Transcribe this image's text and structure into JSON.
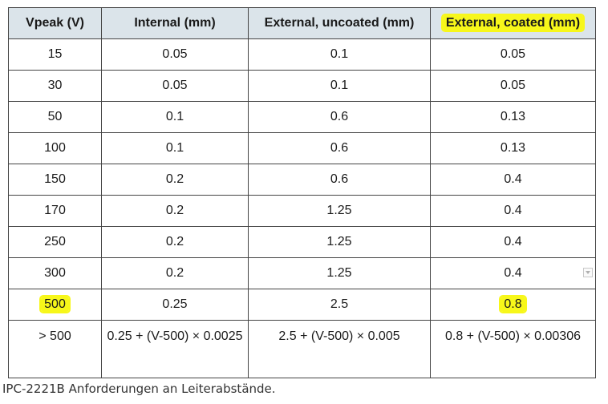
{
  "table": {
    "headers": {
      "col1": "Vpeak (V)",
      "col2": "Internal (mm)",
      "col3": "External, uncoated (mm)",
      "col4": "External, coated (mm)"
    },
    "rows": [
      {
        "vpeak": "15",
        "internal": "0.05",
        "uncoated": "0.1",
        "coated": "0.05"
      },
      {
        "vpeak": "30",
        "internal": "0.05",
        "uncoated": "0.1",
        "coated": "0.05"
      },
      {
        "vpeak": "50",
        "internal": "0.1",
        "uncoated": "0.6",
        "coated": "0.13"
      },
      {
        "vpeak": "100",
        "internal": "0.1",
        "uncoated": "0.6",
        "coated": "0.13"
      },
      {
        "vpeak": "150",
        "internal": "0.2",
        "uncoated": "0.6",
        "coated": "0.4"
      },
      {
        "vpeak": "170",
        "internal": "0.2",
        "uncoated": "1.25",
        "coated": "0.4"
      },
      {
        "vpeak": "250",
        "internal": "0.2",
        "uncoated": "1.25",
        "coated": "0.4"
      },
      {
        "vpeak": "300",
        "internal": "0.2",
        "uncoated": "1.25",
        "coated": "0.4"
      },
      {
        "vpeak": "500",
        "internal": "0.25",
        "uncoated": "2.5",
        "coated": "0.8"
      },
      {
        "vpeak": "> 500",
        "internal": "0.25 + (V-500) × 0.0025",
        "uncoated": "2.5 + (V-500) × 0.005",
        "coated": "0.8 + (V-500) × 0.00306"
      }
    ]
  },
  "caption": "IPC-2221B Anforderungen an Leiterabstände.",
  "colors": {
    "header_bg": "#dbe4ea",
    "highlight": "#f7f71a",
    "border": "#444444"
  },
  "icons": {
    "sort_handle": "chevron-down-icon"
  }
}
